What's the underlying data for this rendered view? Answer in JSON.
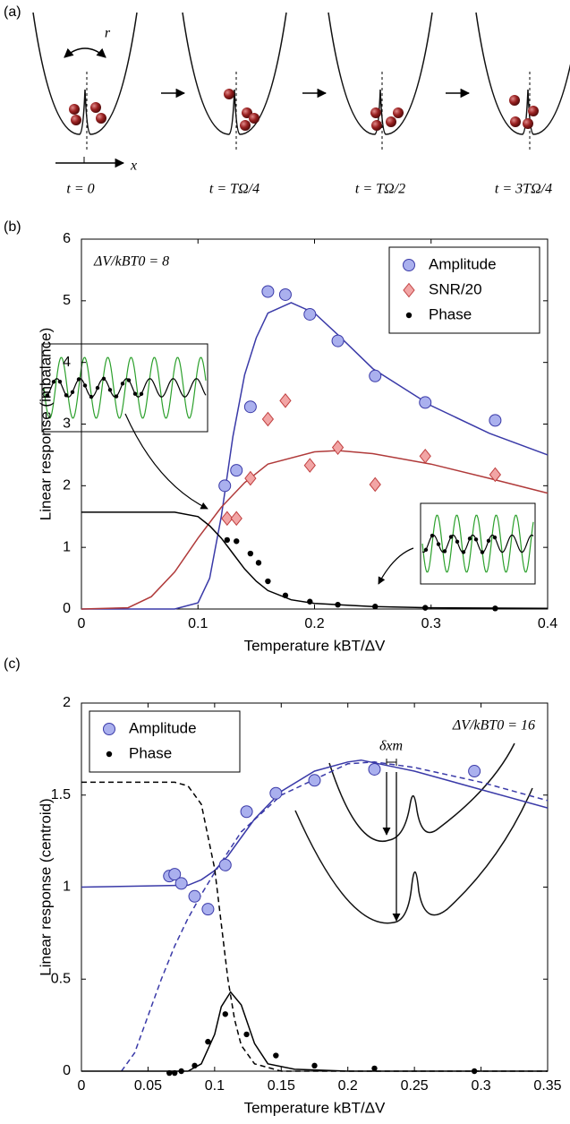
{
  "panel_a": {
    "label": "(a)",
    "r": "r",
    "x": "x",
    "times": [
      "t = 0",
      "t = TΩ/4",
      "t = TΩ/2",
      "t = 3TΩ/4"
    ]
  },
  "chart_data": [
    {
      "type": "scatter",
      "panel_label": "(b)",
      "annotation": "ΔV/kBT0 = 8",
      "x_label": "Temperature kBT/ΔV",
      "y_label": "Linear response (imbalance)",
      "xlim": [
        0,
        0.4
      ],
      "xticks": [
        0,
        0.1,
        0.2,
        0.3,
        0.4
      ],
      "ylim": [
        0,
        6
      ],
      "yticks": [
        0,
        1,
        2,
        3,
        4,
        5,
        6
      ],
      "legend": "upper right",
      "series": [
        {
          "name": "Amplitude",
          "color": "#3a3aa8",
          "marker": "circle",
          "x": [
            0.123,
            0.133,
            0.145,
            0.16,
            0.175,
            0.196,
            0.22,
            0.252,
            0.295,
            0.355
          ],
          "values": [
            2.0,
            2.25,
            3.28,
            5.15,
            5.1,
            4.78,
            4.35,
            3.78,
            3.35,
            3.06
          ]
        },
        {
          "name": "SNR/20",
          "color": "#c04040",
          "marker": "diamond",
          "x": [
            0.125,
            0.133,
            0.145,
            0.16,
            0.175,
            0.196,
            0.22,
            0.252,
            0.295,
            0.355
          ],
          "values": [
            1.47,
            1.47,
            2.12,
            3.08,
            3.38,
            2.33,
            2.62,
            2.02,
            2.48,
            2.18
          ]
        },
        {
          "name": "Phase",
          "color": "#000000",
          "marker": "dot",
          "x": [
            0.125,
            0.133,
            0.145,
            0.152,
            0.16,
            0.175,
            0.196,
            0.22,
            0.252,
            0.295,
            0.355
          ],
          "values": [
            1.12,
            1.1,
            0.9,
            0.75,
            0.45,
            0.22,
            0.12,
            0.07,
            0.04,
            0.02,
            0.01
          ]
        }
      ],
      "fits": [
        {
          "color": "#3a3aa8",
          "dashed": false,
          "x": [
            0,
            0.08,
            0.1,
            0.11,
            0.12,
            0.13,
            0.14,
            0.15,
            0.16,
            0.18,
            0.2,
            0.22,
            0.25,
            0.3,
            0.35,
            0.4
          ],
          "values": [
            0,
            0,
            0.1,
            0.5,
            1.5,
            2.8,
            3.8,
            4.4,
            4.8,
            4.97,
            4.8,
            4.45,
            3.9,
            3.3,
            2.85,
            2.5
          ]
        },
        {
          "color": "#b03a3a",
          "dashed": false,
          "x": [
            0,
            0.04,
            0.06,
            0.08,
            0.1,
            0.12,
            0.14,
            0.16,
            0.2,
            0.22,
            0.25,
            0.3,
            0.35,
            0.4
          ],
          "values": [
            0,
            0.02,
            0.2,
            0.6,
            1.15,
            1.65,
            2.05,
            2.35,
            2.55,
            2.57,
            2.52,
            2.35,
            2.12,
            1.88
          ]
        },
        {
          "color": "#000000",
          "dashed": false,
          "x": [
            0,
            0.08,
            0.1,
            0.11,
            0.12,
            0.13,
            0.14,
            0.15,
            0.16,
            0.18,
            0.2,
            0.25,
            0.3,
            0.4
          ],
          "values": [
            1.57,
            1.57,
            1.5,
            1.35,
            1.15,
            0.9,
            0.65,
            0.45,
            0.3,
            0.15,
            0.09,
            0.04,
            0.02,
            0.01
          ]
        }
      ]
    },
    {
      "type": "scatter",
      "panel_label": "(c)",
      "annotation": "ΔV/kBT0 = 16",
      "inset_label": "δxm",
      "x_label": "Temperature kBT/ΔV",
      "y_label": "Linear response (centroid)",
      "xlim": [
        0,
        0.35
      ],
      "xticks": [
        0,
        0.05,
        0.1,
        0.15,
        0.2,
        0.25,
        0.3,
        0.35
      ],
      "ylim": [
        0,
        2
      ],
      "yticks": [
        0,
        0.5,
        1,
        1.5,
        2
      ],
      "legend": "upper left",
      "series": [
        {
          "name": "Amplitude",
          "color": "#3a3aa8",
          "marker": "circle",
          "x": [
            0.066,
            0.07,
            0.075,
            0.085,
            0.095,
            0.108,
            0.124,
            0.146,
            0.175,
            0.22,
            0.295
          ],
          "values": [
            1.06,
            1.07,
            1.02,
            0.95,
            0.88,
            1.12,
            1.41,
            1.51,
            1.58,
            1.64,
            1.63
          ]
        },
        {
          "name": "Phase",
          "color": "#000000",
          "marker": "dot",
          "x": [
            0.066,
            0.07,
            0.075,
            0.085,
            0.095,
            0.108,
            0.124,
            0.146,
            0.175,
            0.22,
            0.295
          ],
          "values": [
            -0.01,
            -0.01,
            0,
            0.03,
            0.16,
            0.31,
            0.2,
            0.085,
            0.03,
            0.015,
            0
          ]
        }
      ],
      "fits": [
        {
          "color": "#3a3aa8",
          "dashed": false,
          "x": [
            0,
            0.08,
            0.09,
            0.1,
            0.11,
            0.12,
            0.13,
            0.15,
            0.175,
            0.2,
            0.21,
            0.25,
            0.3,
            0.35
          ],
          "values": [
            1.0,
            1.01,
            1.04,
            1.09,
            1.17,
            1.27,
            1.37,
            1.52,
            1.63,
            1.68,
            1.69,
            1.63,
            1.53,
            1.43
          ]
        },
        {
          "color": "#3a3aa8",
          "dashed": true,
          "x": [
            0.03,
            0.04,
            0.05,
            0.06,
            0.07,
            0.08,
            0.09,
            0.1,
            0.12,
            0.15,
            0.2,
            0.22,
            0.25,
            0.3,
            0.35
          ],
          "values": [
            0,
            0.1,
            0.3,
            0.5,
            0.68,
            0.83,
            0.96,
            1.08,
            1.3,
            1.5,
            1.67,
            1.68,
            1.65,
            1.57,
            1.47
          ]
        },
        {
          "color": "#000000",
          "dashed": true,
          "x": [
            0,
            0.07,
            0.08,
            0.09,
            0.1,
            0.105,
            0.11,
            0.115,
            0.12,
            0.13,
            0.15,
            0.35
          ],
          "values": [
            1.57,
            1.57,
            1.55,
            1.45,
            1.1,
            0.8,
            0.5,
            0.28,
            0.14,
            0.04,
            0,
            0
          ]
        },
        {
          "color": "#000000",
          "dashed": false,
          "x": [
            0,
            0.08,
            0.09,
            0.1,
            0.105,
            0.112,
            0.12,
            0.13,
            0.14,
            0.16,
            0.2,
            0.35
          ],
          "values": [
            0,
            0,
            0.04,
            0.2,
            0.35,
            0.43,
            0.36,
            0.15,
            0.04,
            0.01,
            0,
            0
          ]
        }
      ]
    }
  ]
}
